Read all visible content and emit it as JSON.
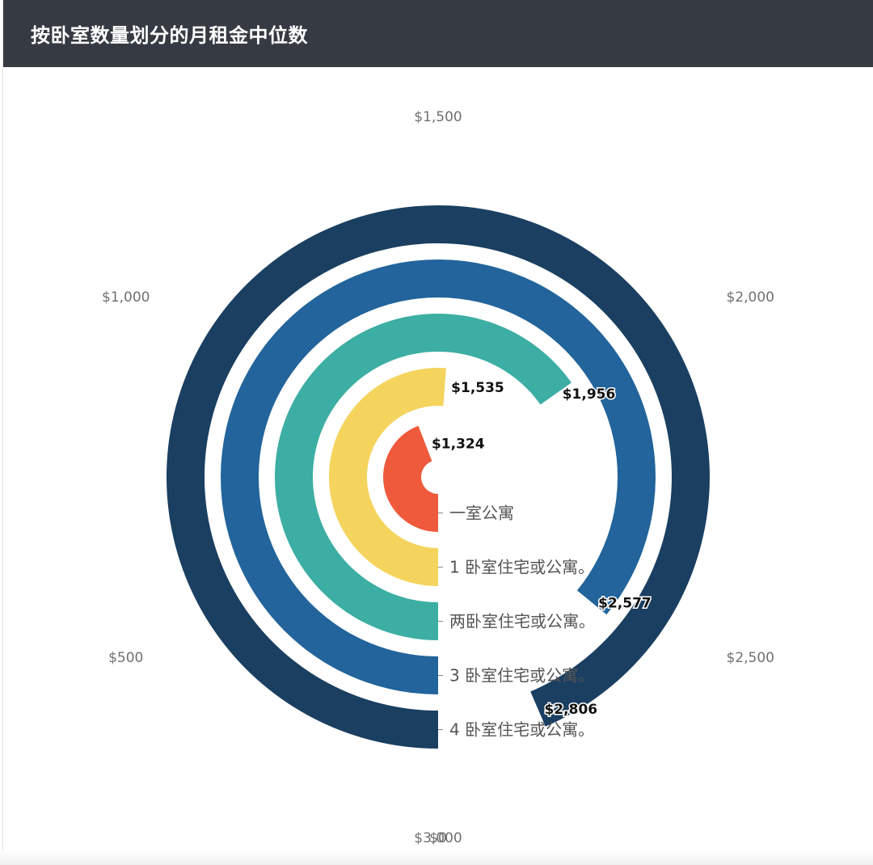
{
  "header": {
    "title": "按卧室数量划分的月租金中位数"
  },
  "chart_data": {
    "type": "radial-bar",
    "title": "按卧室数量划分的月租金中位数",
    "axis": {
      "min": 0,
      "max": 3000,
      "ticks": [
        0,
        500,
        1000,
        1500,
        2000,
        2500,
        3000
      ],
      "tick_labels": [
        "$0",
        "$500",
        "$1,000",
        "$1,500",
        "$2,000",
        "$2,500",
        "$3,000"
      ]
    },
    "categories": [
      "一室公寓",
      "1 卧室住宅或公寓。",
      "两卧室住宅或公寓。",
      "3 卧室住宅或公寓。",
      "4 卧室住宅或公寓。"
    ],
    "values": [
      1324,
      1535,
      1956,
      2577,
      2806
    ],
    "value_labels": [
      "$1,324",
      "$1,535",
      "$1,956",
      "$2,577",
      "$2,806"
    ],
    "colors": [
      "#ef5a3c",
      "#f5d45e",
      "#3daea3",
      "#22649b",
      "#1a3f61"
    ]
  }
}
